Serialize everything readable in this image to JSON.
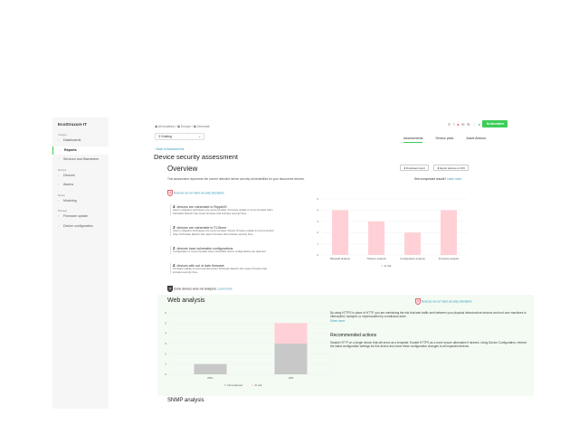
{
  "app": {
    "logo": "EcoStruxure IT"
  },
  "sidebar": {
    "sections": [
      {
        "label": "Analyze",
        "items": [
          {
            "label": "Dashboards",
            "icon": "eye-icon"
          },
          {
            "label": "Reports",
            "icon": "report-icon",
            "active": true
          },
          {
            "label": "Services and Warranties",
            "icon": "services-icon"
          }
        ]
      },
      {
        "label": "Monitor",
        "items": [
          {
            "label": "Devices",
            "icon": "device-icon"
          },
          {
            "label": "Alarms",
            "icon": "alarm-icon"
          }
        ]
      },
      {
        "label": "Model",
        "items": [
          {
            "label": "Modeling",
            "icon": "modeling-icon"
          }
        ]
      },
      {
        "label": "Manage",
        "items": [
          {
            "label": "Firmware update",
            "icon": "firmware-icon"
          },
          {
            "label": "Device configuration",
            "icon": "config-icon"
          }
        ]
      }
    ]
  },
  "header": {
    "breadcrumb": [
      "All locations",
      "Europe",
      "Denmark"
    ],
    "filter": "Kolding",
    "tabs": [
      "Assessments",
      "Sensor plots",
      "Asset Advisor"
    ],
    "active_tab": "Assessments",
    "brand": "Schneider",
    "brand_color": "#3dcd58"
  },
  "page": {
    "back": "‹ Back to Assessments",
    "title": "Device security assessment"
  },
  "overview": {
    "title": "Overview",
    "description": "This assessment represents the current detected device security vulnerabilities for your discovered devices.",
    "download": "Download report",
    "export": "Export devices to CSV",
    "unexpected": "See unexpected results?",
    "learn_more": "Learn more",
    "badge": "4",
    "warning": "Devices do not meet security standards",
    "vulns": [
      {
        "count": "4",
        "title": "devices are vulnerable to Ripple20",
        "desc": "Interim mitigation techniques are recommended. Firmware update is recommended when Schneider Electric has newer firmware that includes security fixes."
      },
      {
        "count": "3",
        "title": "devices are vulnerable to TLStorm",
        "desc": "Interim mitigation techniques are recommended. Device firmware update is recommended when Schneider Electric has newer firmware that includes security fixes."
      },
      {
        "count": "2",
        "title": "devices have vulnerable configurations",
        "desc": "Configuration is recommended when vulnerable device configurations are detected."
      },
      {
        "count": "4",
        "title": "devices with out of date firmware",
        "desc": "Firmware update is recommended when Schneider Electric has newer firmware that includes security fixes."
      }
    ],
    "not_analyzed": "Some devices were not analyzed.",
    "not_analyzed_link": "Learn more"
  },
  "web": {
    "title": "Web analysis",
    "badge": "2",
    "warning": "Devices do not meet security standards",
    "text": "By using HTTPS in place of HTTP, you are minimizing the risk that web traffic sent between your physical infrastructure devices and end user machines is intercepted, replayed, or impersonated by a malicious actor.",
    "show_more": "Show more",
    "rec_title": "Recommended actions",
    "rec_text": "Disable HTTP on a single device that will serve as a template. Enable HTTPS as a more secure alternative if desired. Using Device Configuration, retrieve the latest configuration settings for this device and clone these configuration changes to all impacted devices."
  },
  "next_section": "SNMP analysis",
  "chart_data": [
    {
      "type": "bar",
      "categories": [
        "Ripple20 analysis",
        "TLStorm analysis",
        "Configuration analysis",
        "Firmware analysis"
      ],
      "series": [
        {
          "name": "At risk",
          "values": [
            4,
            3,
            2,
            4
          ],
          "color": "#ffd1d6"
        }
      ],
      "ylim": [
        0,
        5
      ],
      "yticks": [
        0,
        1,
        2,
        3,
        4,
        5
      ],
      "legend": "bottom",
      "grid": true
    },
    {
      "type": "bar",
      "stacked": true,
      "categories": [
        "PDU",
        "UPS"
      ],
      "series": [
        {
          "name": "Not analyzed",
          "values": [
            1,
            3
          ],
          "color": "#c8c8c8"
        },
        {
          "name": "At risk",
          "values": [
            0,
            2
          ],
          "color": "#ffd1d6"
        }
      ],
      "ylim": [
        0,
        6
      ],
      "yticks": [
        0,
        1,
        2,
        3,
        4,
        5,
        6
      ],
      "legend": "bottom",
      "grid": true
    }
  ]
}
